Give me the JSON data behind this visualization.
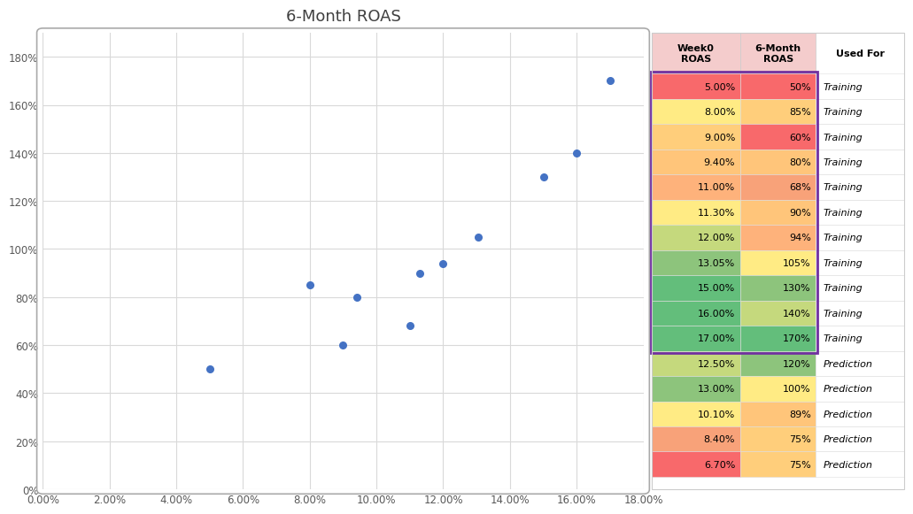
{
  "title": "6-Month ROAS",
  "scatter_x": [
    5.0,
    8.0,
    9.0,
    9.4,
    11.0,
    11.3,
    12.0,
    13.05,
    15.0,
    16.0,
    17.0
  ],
  "scatter_y": [
    50,
    85,
    60,
    80,
    68,
    90,
    94,
    105,
    130,
    140,
    170
  ],
  "xlim": [
    0.0,
    18.0
  ],
  "ylim": [
    0,
    190
  ],
  "xticks": [
    0.0,
    2.0,
    4.0,
    6.0,
    8.0,
    10.0,
    12.0,
    14.0,
    16.0,
    18.0
  ],
  "yticks": [
    0,
    20,
    40,
    60,
    80,
    100,
    120,
    140,
    160,
    180
  ],
  "dot_color": "#4472C4",
  "background_color": "#FFFFFF",
  "plot_bg_color": "#FFFFFF",
  "grid_color": "#D9D9D9",
  "table_headers": [
    "Week0\nROAS",
    "6-Month\nROAS",
    "Used For"
  ],
  "table_data": [
    [
      "5.00%",
      "50%",
      "Training"
    ],
    [
      "8.00%",
      "85%",
      "Training"
    ],
    [
      "9.00%",
      "60%",
      "Training"
    ],
    [
      "9.40%",
      "80%",
      "Training"
    ],
    [
      "11.00%",
      "68%",
      "Training"
    ],
    [
      "11.30%",
      "90%",
      "Training"
    ],
    [
      "12.00%",
      "94%",
      "Training"
    ],
    [
      "13.05%",
      "105%",
      "Training"
    ],
    [
      "15.00%",
      "130%",
      "Training"
    ],
    [
      "16.00%",
      "140%",
      "Training"
    ],
    [
      "17.00%",
      "170%",
      "Training"
    ],
    [
      "12.50%",
      "120%",
      "Prediction"
    ],
    [
      "13.00%",
      "100%",
      "Prediction"
    ],
    [
      "10.10%",
      "89%",
      "Prediction"
    ],
    [
      "8.40%",
      "75%",
      "Prediction"
    ],
    [
      "6.70%",
      "75%",
      "Prediction"
    ]
  ],
  "col0_colors": [
    "#F8696B",
    "#FFEB84",
    "#FFCE7B",
    "#FFC57A",
    "#FEB27B",
    "#FFEB84",
    "#C5D97D",
    "#8DC47C",
    "#63BE7B",
    "#63BE7B",
    "#63BE7B",
    "#C5D97D",
    "#8DC47C",
    "#FFEB84",
    "#F8A279",
    "#F8696B"
  ],
  "col1_colors": [
    "#F8696B",
    "#FFCE7B",
    "#F8696B",
    "#FFC57A",
    "#F8A279",
    "#FFC57A",
    "#FEB27B",
    "#FFEB84",
    "#8DC47C",
    "#C5D97D",
    "#63BE7B",
    "#8DC47C",
    "#FFEB84",
    "#FFC57A",
    "#FFCE7B",
    "#FFCE7B"
  ],
  "training_border_color": "#7030A0",
  "prediction_border_color": "none",
  "outer_border_color": "#CCCCCC"
}
